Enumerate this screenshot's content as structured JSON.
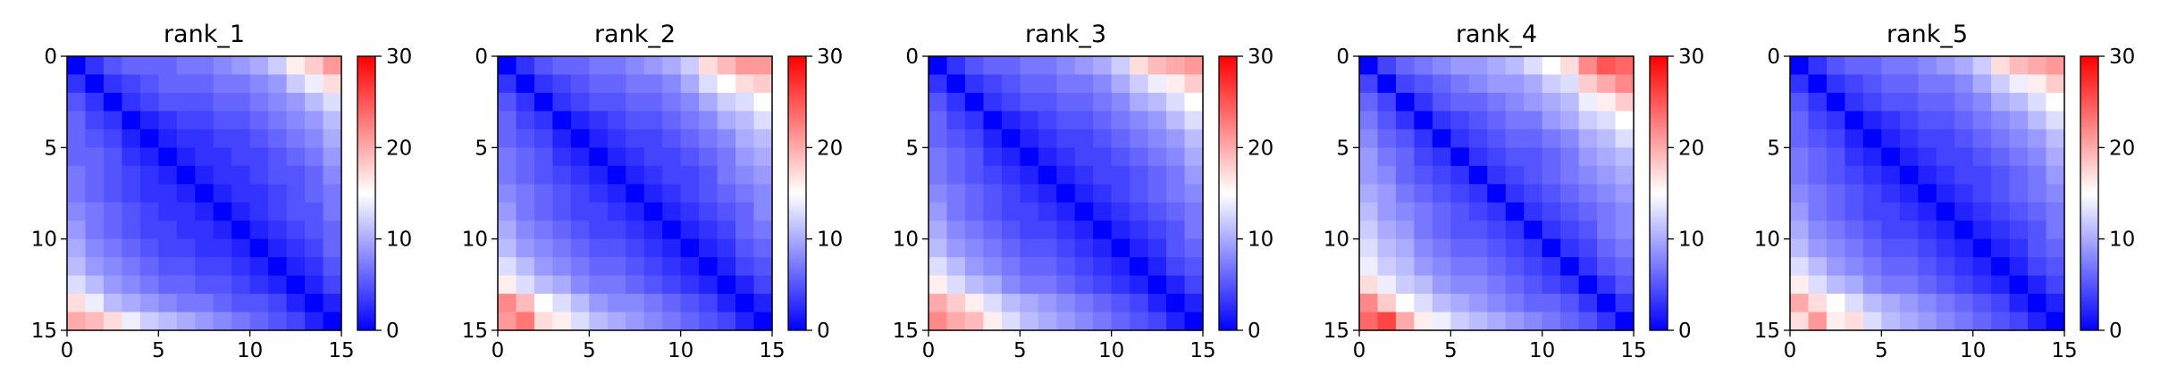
{
  "figure": {
    "background": "#ffffff"
  },
  "chart_data": [
    {
      "type": "heatmap",
      "title": "rank_1",
      "x_ticks": [
        "0",
        "5",
        "10",
        "15"
      ],
      "y_ticks": [
        "0",
        "5",
        "10",
        "15"
      ],
      "xlim": [
        0,
        15
      ],
      "ylim": [
        15,
        0
      ],
      "colorbar": {
        "ticks": [
          "0",
          "10",
          "20",
          "30"
        ],
        "min": 0,
        "max": 30,
        "colormap": "bwr"
      },
      "values": [
        [
          0,
          3,
          5,
          6,
          6,
          6,
          7,
          7,
          8,
          9,
          10,
          12,
          16,
          18,
          21
        ],
        [
          3,
          0,
          3,
          4,
          5,
          6,
          6,
          6,
          7,
          7,
          8,
          9,
          12,
          14,
          17
        ],
        [
          5,
          3,
          0,
          3,
          4,
          5,
          5,
          5,
          6,
          6,
          7,
          8,
          9,
          11,
          13
        ],
        [
          6,
          4,
          3,
          0,
          2,
          3,
          4,
          4,
          5,
          5,
          6,
          7,
          8,
          9,
          11
        ],
        [
          6,
          5,
          4,
          2,
          0,
          2,
          3,
          3,
          4,
          4,
          5,
          6,
          7,
          8,
          10
        ],
        [
          6,
          6,
          5,
          3,
          2,
          0,
          2,
          3,
          3,
          4,
          4,
          5,
          6,
          7,
          9
        ],
        [
          7,
          6,
          5,
          4,
          3,
          2,
          0,
          2,
          3,
          3,
          4,
          5,
          5,
          6,
          8
        ],
        [
          7,
          6,
          5,
          4,
          3,
          3,
          2,
          0,
          2,
          3,
          3,
          4,
          5,
          6,
          7
        ],
        [
          8,
          7,
          6,
          5,
          4,
          3,
          3,
          2,
          0,
          2,
          3,
          4,
          5,
          5,
          7
        ],
        [
          9,
          7,
          6,
          5,
          4,
          4,
          3,
          3,
          2,
          0,
          2,
          3,
          4,
          5,
          6
        ],
        [
          10,
          8,
          7,
          6,
          5,
          4,
          4,
          3,
          3,
          2,
          0,
          2,
          3,
          4,
          6
        ],
        [
          11,
          9,
          8,
          7,
          6,
          5,
          5,
          4,
          4,
          3,
          2,
          0,
          2,
          3,
          5
        ],
        [
          13,
          11,
          9,
          8,
          7,
          6,
          6,
          5,
          5,
          4,
          3,
          2,
          0,
          2,
          4
        ],
        [
          17,
          14,
          11,
          10,
          9,
          8,
          7,
          7,
          6,
          5,
          5,
          4,
          2,
          0,
          2
        ],
        [
          20,
          19,
          17,
          14,
          12,
          11,
          10,
          9,
          8,
          7,
          6,
          5,
          4,
          2,
          0
        ]
      ]
    },
    {
      "type": "heatmap",
      "title": "rank_2",
      "x_ticks": [
        "0",
        "5",
        "10",
        "15"
      ],
      "y_ticks": [
        "0",
        "5",
        "10",
        "15"
      ],
      "xlim": [
        0,
        15
      ],
      "ylim": [
        15,
        0
      ],
      "colorbar": {
        "ticks": [
          "0",
          "10",
          "20",
          "30"
        ],
        "min": 0,
        "max": 30,
        "colormap": "bwr"
      },
      "values": [
        [
          0,
          3,
          5,
          6,
          6,
          7,
          7,
          8,
          9,
          10,
          12,
          17,
          19,
          21,
          21
        ],
        [
          3,
          0,
          3,
          4,
          5,
          6,
          6,
          7,
          7,
          8,
          10,
          13,
          15,
          17,
          18
        ],
        [
          5,
          3,
          0,
          3,
          4,
          5,
          5,
          6,
          6,
          7,
          8,
          10,
          12,
          13,
          15
        ],
        [
          6,
          4,
          3,
          0,
          2,
          3,
          4,
          5,
          5,
          6,
          7,
          8,
          10,
          11,
          13
        ],
        [
          6,
          5,
          4,
          2,
          0,
          2,
          3,
          4,
          4,
          5,
          6,
          7,
          8,
          10,
          11
        ],
        [
          7,
          6,
          5,
          3,
          2,
          0,
          2,
          3,
          4,
          4,
          5,
          6,
          7,
          9,
          10
        ],
        [
          7,
          6,
          5,
          4,
          3,
          2,
          0,
          2,
          3,
          4,
          4,
          5,
          7,
          8,
          9
        ],
        [
          8,
          7,
          6,
          5,
          4,
          3,
          2,
          0,
          2,
          3,
          4,
          5,
          6,
          7,
          8
        ],
        [
          9,
          7,
          6,
          5,
          4,
          4,
          3,
          2,
          0,
          2,
          3,
          4,
          5,
          6,
          8
        ],
        [
          10,
          8,
          7,
          6,
          5,
          4,
          4,
          3,
          2,
          0,
          2,
          3,
          4,
          6,
          7
        ],
        [
          11,
          9,
          8,
          7,
          6,
          5,
          5,
          4,
          3,
          2,
          0,
          2,
          3,
          5,
          6
        ],
        [
          13,
          11,
          9,
          8,
          7,
          6,
          6,
          5,
          4,
          3,
          2,
          0,
          2,
          4,
          5
        ],
        [
          16,
          13,
          11,
          10,
          8,
          7,
          7,
          6,
          5,
          4,
          3,
          2,
          0,
          2,
          4
        ],
        [
          22,
          19,
          15,
          13,
          11,
          9,
          8,
          8,
          7,
          6,
          5,
          4,
          2,
          0,
          2
        ],
        [
          21,
          23,
          17,
          16,
          13,
          11,
          10,
          9,
          8,
          7,
          6,
          5,
          4,
          2,
          0
        ]
      ]
    },
    {
      "type": "heatmap",
      "title": "rank_3",
      "x_ticks": [
        "0",
        "5",
        "10",
        "15"
      ],
      "y_ticks": [
        "0",
        "5",
        "10",
        "15"
      ],
      "xlim": [
        0,
        15
      ],
      "ylim": [
        15,
        0
      ],
      "colorbar": {
        "ticks": [
          "0",
          "10",
          "20",
          "30"
        ],
        "min": 0,
        "max": 30,
        "colormap": "bwr"
      },
      "values": [
        [
          0,
          3,
          5,
          6,
          6,
          7,
          7,
          8,
          9,
          10,
          12,
          17,
          19,
          20,
          21
        ],
        [
          3,
          0,
          3,
          4,
          5,
          6,
          6,
          7,
          7,
          8,
          10,
          12,
          14,
          16,
          18
        ],
        [
          5,
          3,
          0,
          3,
          4,
          5,
          5,
          6,
          6,
          7,
          8,
          10,
          11,
          13,
          15
        ],
        [
          6,
          4,
          3,
          0,
          2,
          3,
          4,
          5,
          5,
          6,
          7,
          8,
          9,
          11,
          13
        ],
        [
          6,
          5,
          4,
          2,
          0,
          2,
          3,
          4,
          4,
          5,
          6,
          7,
          8,
          9,
          11
        ],
        [
          7,
          6,
          5,
          3,
          2,
          0,
          2,
          3,
          4,
          4,
          5,
          6,
          7,
          8,
          10
        ],
        [
          7,
          6,
          5,
          4,
          3,
          2,
          0,
          2,
          3,
          4,
          4,
          5,
          6,
          7,
          9
        ],
        [
          8,
          7,
          6,
          5,
          4,
          3,
          2,
          0,
          2,
          3,
          4,
          5,
          6,
          7,
          8
        ],
        [
          9,
          7,
          6,
          5,
          4,
          4,
          3,
          2,
          0,
          2,
          3,
          4,
          5,
          6,
          7
        ],
        [
          10,
          8,
          7,
          6,
          5,
          4,
          4,
          3,
          2,
          0,
          2,
          3,
          4,
          5,
          7
        ],
        [
          11,
          9,
          8,
          7,
          6,
          5,
          5,
          4,
          3,
          2,
          0,
          2,
          3,
          5,
          6
        ],
        [
          13,
          11,
          9,
          8,
          7,
          6,
          6,
          5,
          4,
          3,
          2,
          0,
          2,
          4,
          5
        ],
        [
          16,
          13,
          11,
          10,
          8,
          7,
          7,
          6,
          5,
          4,
          3,
          2,
          0,
          2,
          4
        ],
        [
          20,
          18,
          16,
          13,
          11,
          10,
          9,
          8,
          7,
          6,
          5,
          4,
          2,
          0,
          2
        ],
        [
          22,
          20,
          19,
          16,
          13,
          11,
          10,
          9,
          8,
          7,
          6,
          5,
          4,
          2,
          0
        ]
      ]
    },
    {
      "type": "heatmap",
      "title": "rank_4",
      "x_ticks": [
        "0",
        "5",
        "10",
        "15"
      ],
      "y_ticks": [
        "0",
        "5",
        "10",
        "15"
      ],
      "xlim": [
        0,
        15
      ],
      "ylim": [
        15,
        0
      ],
      "colorbar": {
        "ticks": [
          "0",
          "10",
          "20",
          "30"
        ],
        "min": 0,
        "max": 30,
        "colormap": "bwr"
      },
      "values": [
        [
          0,
          4,
          6,
          7,
          8,
          9,
          9,
          10,
          11,
          13,
          15,
          17,
          22,
          25,
          24
        ],
        [
          4,
          0,
          4,
          5,
          6,
          7,
          8,
          9,
          9,
          10,
          12,
          13,
          18,
          20,
          22
        ],
        [
          6,
          4,
          0,
          3,
          5,
          6,
          6,
          7,
          8,
          9,
          10,
          11,
          14,
          16,
          18
        ],
        [
          7,
          5,
          3,
          0,
          3,
          4,
          5,
          6,
          7,
          7,
          9,
          10,
          12,
          13,
          15
        ],
        [
          8,
          6,
          5,
          3,
          0,
          3,
          4,
          5,
          6,
          6,
          7,
          8,
          10,
          11,
          13
        ],
        [
          9,
          7,
          6,
          4,
          3,
          0,
          3,
          4,
          5,
          5,
          6,
          7,
          9,
          10,
          11
        ],
        [
          9,
          8,
          6,
          5,
          4,
          3,
          0,
          3,
          4,
          5,
          6,
          7,
          8,
          9,
          10
        ],
        [
          10,
          9,
          7,
          6,
          5,
          4,
          3,
          0,
          3,
          4,
          5,
          6,
          7,
          8,
          9
        ],
        [
          11,
          9,
          8,
          7,
          6,
          5,
          4,
          3,
          0,
          3,
          4,
          5,
          6,
          7,
          8
        ],
        [
          12,
          10,
          9,
          7,
          6,
          5,
          5,
          4,
          3,
          0,
          3,
          4,
          5,
          7,
          8
        ],
        [
          13,
          11,
          10,
          8,
          7,
          6,
          6,
          5,
          4,
          3,
          0,
          3,
          4,
          6,
          7
        ],
        [
          14,
          12,
          11,
          9,
          8,
          7,
          7,
          6,
          5,
          4,
          3,
          0,
          3,
          5,
          6
        ],
        [
          17,
          14,
          12,
          11,
          9,
          8,
          8,
          7,
          6,
          5,
          4,
          3,
          0,
          3,
          5
        ],
        [
          22,
          18,
          15,
          13,
          11,
          10,
          9,
          8,
          7,
          6,
          6,
          5,
          3,
          0,
          3
        ],
        [
          24,
          26,
          20,
          16,
          14,
          12,
          11,
          10,
          9,
          8,
          7,
          6,
          5,
          3,
          0
        ]
      ]
    },
    {
      "type": "heatmap",
      "title": "rank_5",
      "x_ticks": [
        "0",
        "5",
        "10",
        "15"
      ],
      "y_ticks": [
        "0",
        "5",
        "10",
        "15"
      ],
      "xlim": [
        0,
        15
      ],
      "ylim": [
        15,
        0
      ],
      "colorbar": {
        "ticks": [
          "0",
          "10",
          "20",
          "30"
        ],
        "min": 0,
        "max": 30,
        "colormap": "bwr"
      },
      "values": [
        [
          0,
          3,
          5,
          6,
          6,
          7,
          7,
          8,
          9,
          10,
          12,
          17,
          19,
          20,
          21
        ],
        [
          3,
          0,
          3,
          4,
          5,
          6,
          6,
          7,
          7,
          8,
          10,
          12,
          14,
          16,
          18
        ],
        [
          5,
          3,
          0,
          3,
          4,
          5,
          5,
          6,
          6,
          7,
          8,
          10,
          11,
          13,
          15
        ],
        [
          6,
          4,
          3,
          0,
          2,
          3,
          4,
          5,
          5,
          6,
          7,
          8,
          9,
          11,
          13
        ],
        [
          6,
          5,
          4,
          2,
          0,
          2,
          3,
          4,
          4,
          5,
          6,
          7,
          8,
          9,
          11
        ],
        [
          7,
          6,
          5,
          3,
          2,
          0,
          2,
          3,
          4,
          4,
          5,
          6,
          7,
          8,
          10
        ],
        [
          7,
          6,
          5,
          4,
          3,
          2,
          0,
          2,
          3,
          4,
          4,
          5,
          6,
          7,
          9
        ],
        [
          8,
          7,
          6,
          5,
          4,
          3,
          2,
          0,
          2,
          3,
          4,
          5,
          6,
          7,
          8
        ],
        [
          9,
          7,
          6,
          5,
          4,
          4,
          3,
          2,
          0,
          2,
          3,
          4,
          5,
          6,
          7
        ],
        [
          10,
          8,
          7,
          6,
          5,
          4,
          4,
          3,
          2,
          0,
          2,
          3,
          4,
          5,
          7
        ],
        [
          11,
          9,
          8,
          7,
          6,
          5,
          5,
          4,
          3,
          2,
          0,
          2,
          3,
          5,
          6
        ],
        [
          13,
          11,
          9,
          8,
          7,
          6,
          6,
          5,
          4,
          3,
          2,
          0,
          2,
          4,
          5
        ],
        [
          16,
          13,
          11,
          10,
          8,
          7,
          7,
          6,
          5,
          4,
          3,
          2,
          0,
          2,
          4
        ],
        [
          20,
          17,
          15,
          13,
          11,
          10,
          9,
          8,
          7,
          6,
          5,
          4,
          2,
          0,
          2
        ],
        [
          17,
          21,
          16,
          17,
          13,
          11,
          10,
          9,
          8,
          7,
          6,
          5,
          4,
          2,
          0
        ]
      ]
    }
  ]
}
